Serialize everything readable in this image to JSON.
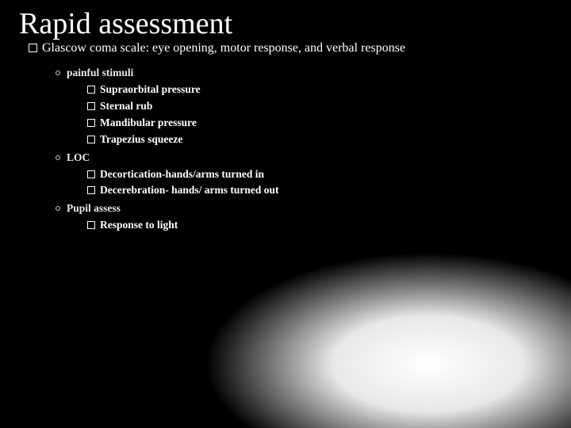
{
  "title": "Rapid assessment",
  "level1": "Glascow coma scale: eye opening, motor response, and verbal response",
  "groups": [
    {
      "label": "painful stimuli",
      "items": [
        "Supraorbital pressure",
        "Sternal rub",
        "Mandibular pressure",
        "Trapezius squeeze"
      ]
    },
    {
      "label": "LOC",
      "items": [
        "Decortication-hands/arms turned in",
        "Decerebration- hands/ arms turned out"
      ]
    },
    {
      "label": "Pupil assess",
      "items": [
        "Response to light"
      ]
    }
  ],
  "colors": {
    "background": "#000000",
    "text": "#ffffff",
    "highlight_center": "rgba(255,255,255,0.35)"
  },
  "typography": {
    "title_fontsize": 38,
    "body_fontsize": 13.5,
    "level1_fontsize": 16,
    "font_family": "Palatino Linotype"
  }
}
